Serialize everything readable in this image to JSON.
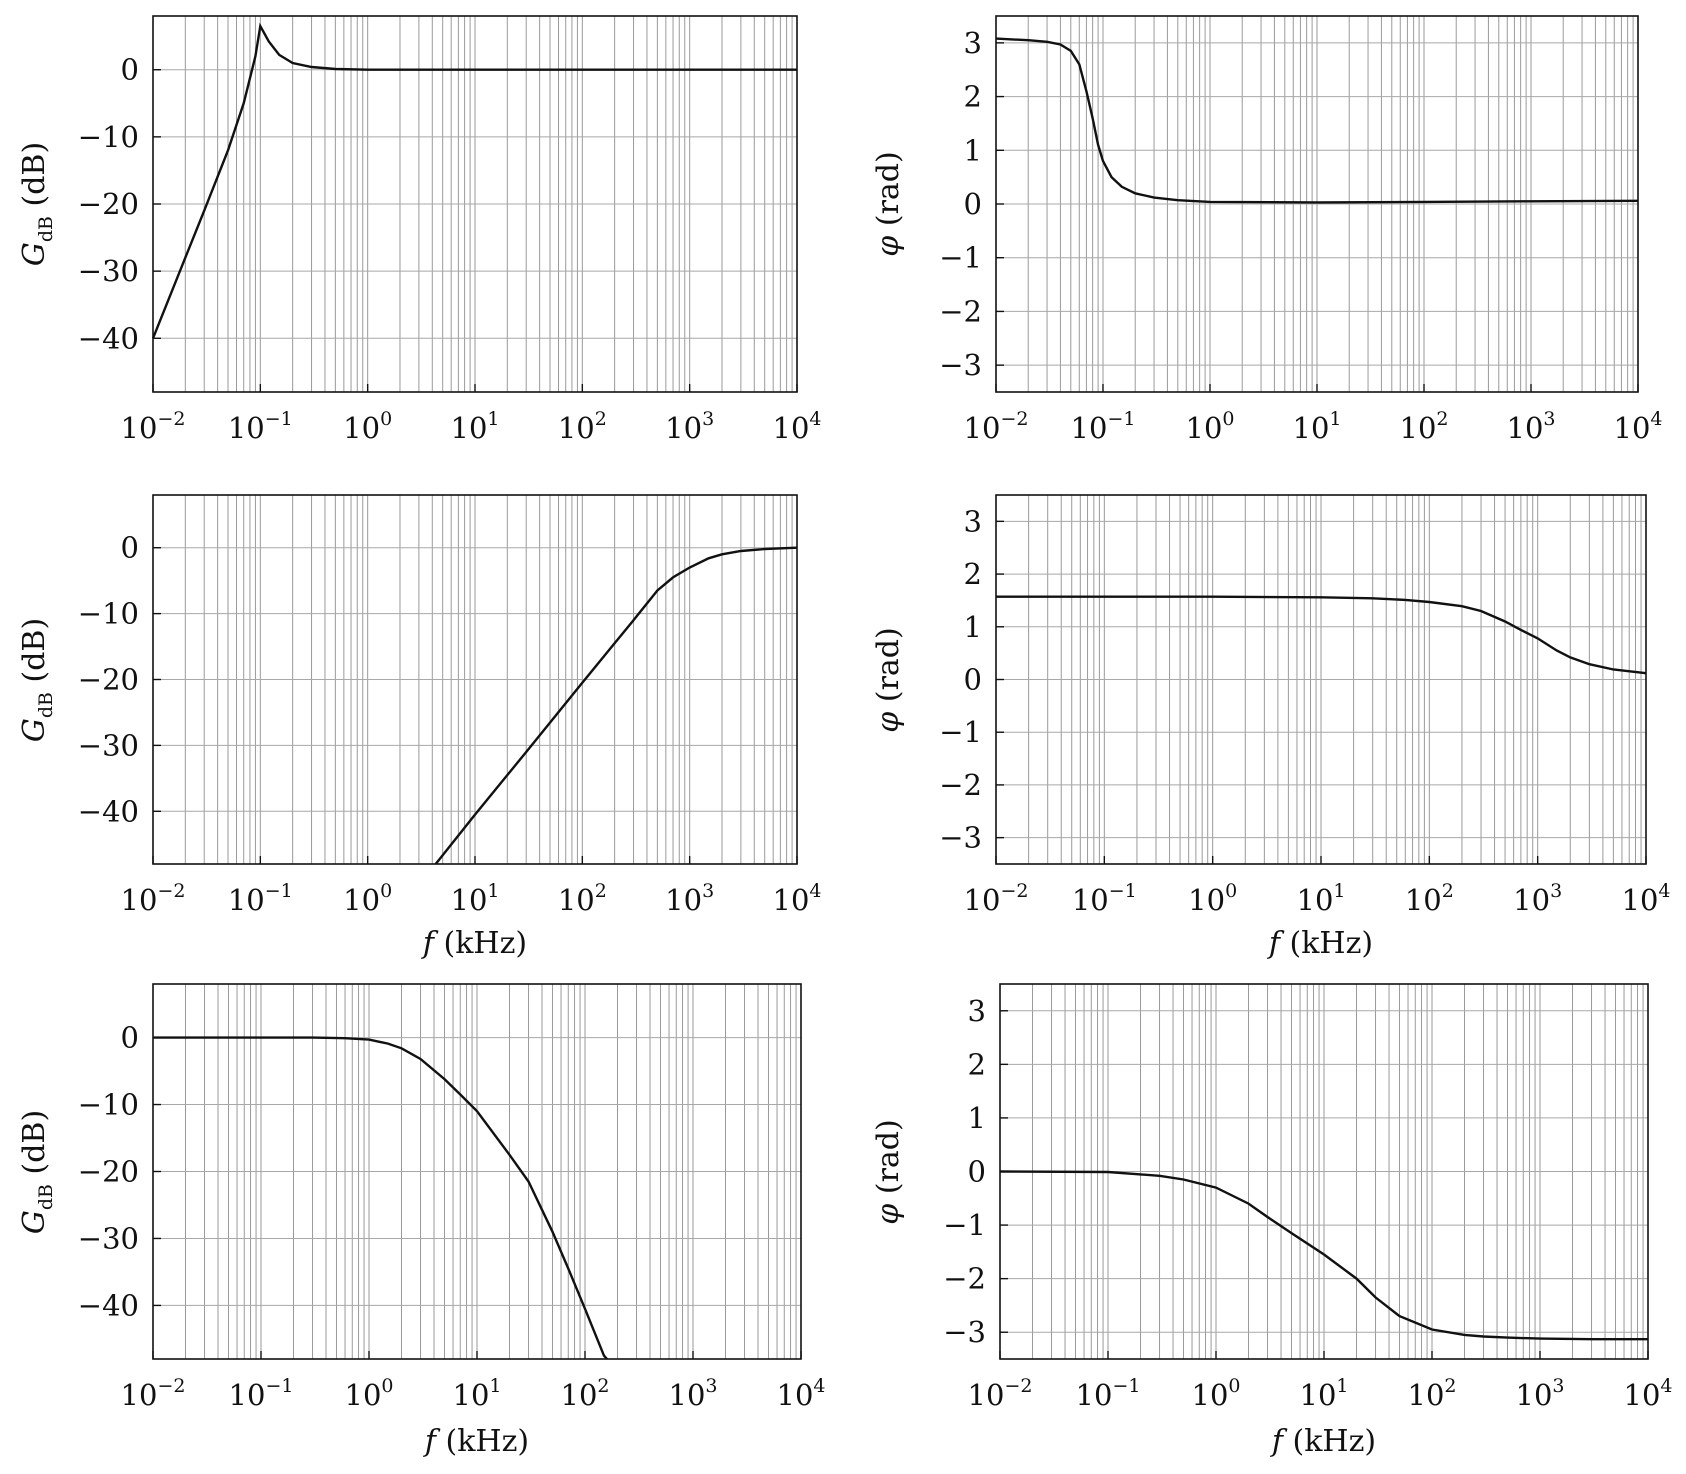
{
  "chart_data": [
    {
      "type": "line",
      "title": "",
      "ylabel": "G_dB (dB)",
      "xlabel": "",
      "xscale": "log",
      "xlim": [
        0.01,
        10000
      ],
      "ylim": [
        -48,
        8
      ],
      "yticks": [
        0,
        -10,
        -20,
        -30,
        -40
      ],
      "series": [
        {
          "x": [
            0.01,
            0.02,
            0.03,
            0.05,
            0.07,
            0.09,
            0.1,
            0.12,
            0.15,
            0.2,
            0.3,
            0.5,
            1,
            10,
            100,
            1000,
            10000
          ],
          "y": [
            -40,
            -28,
            -21,
            -12,
            -5,
            2,
            6.5,
            4.2,
            2.2,
            1.0,
            0.4,
            0.1,
            0,
            0,
            0,
            0,
            0
          ]
        }
      ]
    },
    {
      "type": "line",
      "title": "",
      "ylabel": "φ (rad)",
      "xlabel": "",
      "xscale": "log",
      "xlim": [
        0.01,
        10000
      ],
      "ylim": [
        -3.5,
        3.5
      ],
      "yticks": [
        3,
        2,
        1,
        0,
        -1,
        -2,
        -3
      ],
      "series": [
        {
          "x": [
            0.01,
            0.02,
            0.03,
            0.04,
            0.05,
            0.06,
            0.07,
            0.08,
            0.09,
            0.1,
            0.12,
            0.15,
            0.2,
            0.3,
            0.5,
            1,
            10,
            100,
            1000,
            10000
          ],
          "y": [
            3.08,
            3.05,
            3.02,
            2.97,
            2.85,
            2.6,
            2.1,
            1.6,
            1.1,
            0.8,
            0.5,
            0.32,
            0.2,
            0.12,
            0.07,
            0.04,
            0.03,
            0.04,
            0.05,
            0.06
          ]
        }
      ]
    },
    {
      "type": "line",
      "title": "",
      "ylabel": "G_dB (dB)",
      "xlabel": "f (kHz)",
      "xscale": "log",
      "xlim": [
        0.01,
        10000
      ],
      "ylim": [
        -48,
        8
      ],
      "yticks": [
        0,
        -10,
        -20,
        -30,
        -40
      ],
      "series": [
        {
          "x": [
            4.3,
            10,
            30,
            100,
            200,
            300,
            500,
            700,
            1000,
            1500,
            2000,
            3000,
            5000,
            10000
          ],
          "y": [
            -48,
            -40.5,
            -31,
            -20.5,
            -14.5,
            -11,
            -6.5,
            -4.5,
            -3,
            -1.6,
            -1,
            -0.5,
            -0.2,
            0
          ]
        }
      ]
    },
    {
      "type": "line",
      "title": "",
      "ylabel": "φ (rad)",
      "xlabel": "f (kHz)",
      "xscale": "log",
      "xlim": [
        0.01,
        10000
      ],
      "ylim": [
        -3.5,
        3.5
      ],
      "yticks": [
        3,
        2,
        1,
        0,
        -1,
        -2,
        -3
      ],
      "series": [
        {
          "x": [
            0.01,
            1,
            10,
            30,
            60,
            100,
            200,
            300,
            500,
            700,
            1000,
            1500,
            2000,
            3000,
            5000,
            10000
          ],
          "y": [
            1.57,
            1.57,
            1.56,
            1.54,
            1.51,
            1.47,
            1.39,
            1.3,
            1.1,
            0.94,
            0.78,
            0.55,
            0.42,
            0.29,
            0.19,
            0.12
          ]
        }
      ]
    },
    {
      "type": "line",
      "title": "",
      "ylabel": "G_dB (dB)",
      "xlabel": "f (kHz)",
      "xscale": "log",
      "xlim": [
        0.01,
        10000
      ],
      "ylim": [
        -48,
        8
      ],
      "yticks": [
        0,
        -10,
        -20,
        -30,
        -40
      ],
      "series": [
        {
          "x": [
            0.01,
            0.3,
            0.6,
            1,
            1.5,
            2,
            3,
            5,
            7,
            10,
            20,
            30,
            50,
            70,
            100,
            150,
            160
          ],
          "y": [
            0,
            0,
            -0.1,
            -0.3,
            -0.9,
            -1.6,
            -3.2,
            -6.2,
            -8.5,
            -11,
            -17.5,
            -21.5,
            -29,
            -34.5,
            -40.5,
            -47.5,
            -48
          ]
        }
      ]
    },
    {
      "type": "line",
      "title": "",
      "ylabel": "φ (rad)",
      "xlabel": "f (kHz)",
      "xscale": "log",
      "xlim": [
        0.01,
        10000
      ],
      "ylim": [
        -3.5,
        3.5
      ],
      "yticks": [
        3,
        2,
        1,
        0,
        -1,
        -2,
        -3
      ],
      "series": [
        {
          "x": [
            0.01,
            0.1,
            0.3,
            0.5,
            1,
            2,
            3,
            5,
            10,
            20,
            30,
            50,
            100,
            200,
            300,
            500,
            1000,
            3000,
            10000
          ],
          "y": [
            0,
            -0.01,
            -0.08,
            -0.15,
            -0.3,
            -0.6,
            -0.85,
            -1.15,
            -1.55,
            -2.0,
            -2.35,
            -2.7,
            -2.95,
            -3.05,
            -3.08,
            -3.1,
            -3.12,
            -3.13,
            -3.13
          ]
        }
      ]
    }
  ],
  "tick_base": "10",
  "xtick_exponents": [
    "−2",
    "−1",
    "0",
    "1",
    "2",
    "3",
    "4"
  ],
  "ytick_labels_db": [
    "0",
    "−10",
    "−20",
    "−30",
    "−40"
  ],
  "ytick_labels_rad": [
    "3",
    "2",
    "1",
    "0",
    "−1",
    "−2",
    "−3"
  ],
  "labels": {
    "g_main": "G",
    "g_sub": "dB",
    "g_unit": " (dB)",
    "phi_main": "φ",
    "phi_unit": " (rad)",
    "f_main": "f",
    "f_unit": " (kHz)"
  }
}
